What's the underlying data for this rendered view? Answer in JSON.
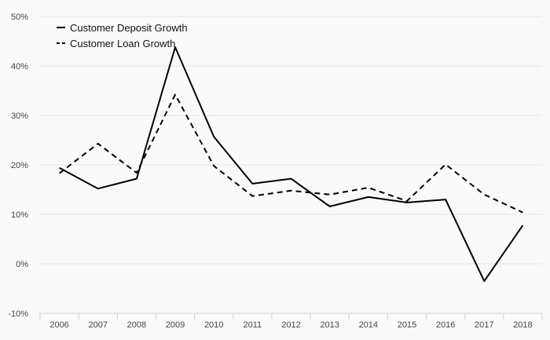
{
  "chart_data": {
    "type": "line",
    "title": "",
    "xlabel": "",
    "ylabel": "",
    "x": [
      "2006",
      "2007",
      "2008",
      "2009",
      "2010",
      "2011",
      "2012",
      "2013",
      "2014",
      "2015",
      "2016",
      "2017",
      "2018"
    ],
    "series": [
      {
        "name": "Customer Deposit Growth",
        "style": "solid",
        "color": "#000000",
        "values": [
          19.4,
          15.2,
          17.2,
          43.8,
          25.7,
          16.2,
          17.2,
          11.6,
          13.5,
          12.4,
          13.0,
          -3.5,
          7.8
        ]
      },
      {
        "name": "Customer Loan Growth",
        "style": "dashed",
        "color": "#000000",
        "values": [
          18.3,
          24.3,
          18.4,
          34.2,
          19.8,
          13.7,
          14.8,
          14.0,
          15.4,
          12.7,
          20.1,
          14.0,
          10.4
        ]
      }
    ],
    "ylim": [
      -10,
      50
    ],
    "yticks": [
      -10,
      0,
      10,
      20,
      30,
      40,
      50
    ],
    "ytick_labels": [
      "-10%",
      "0%",
      "10%",
      "20%",
      "30%",
      "40%",
      "50%"
    ],
    "grid": true,
    "legend_position": "top-left",
    "colors": {
      "background": "#fafafa",
      "grid": "#e6e6e6",
      "axis": "#c8d0e0"
    }
  }
}
